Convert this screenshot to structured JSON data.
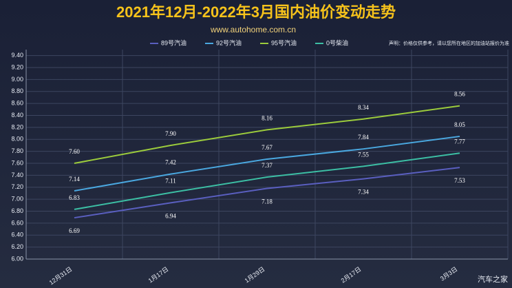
{
  "chart_data": {
    "type": "line",
    "title": "2021年12月-2022年3月国内油价变动走势",
    "subtitle": "www.autohome.com.cn",
    "note": "声明：价格仅供参考，请以您所在地区的加油站报价为准",
    "watermark": "汽车之家",
    "categories": [
      "12月31日",
      "1月17日",
      "1月29日",
      "2月17日",
      "3月3日"
    ],
    "series": [
      {
        "name": "89号汽油",
        "color": "#5a5fc0",
        "values": [
          6.69,
          6.94,
          7.18,
          7.34,
          7.53
        ],
        "value_labels": [
          "6.69",
          "6.94",
          "7.18",
          "7.34",
          "7.53"
        ]
      },
      {
        "name": "92号汽油",
        "color": "#4aa8e0",
        "values": [
          7.14,
          7.42,
          7.67,
          7.84,
          8.05
        ],
        "value_labels": [
          "7.14",
          "7.42",
          "7.67",
          "7.84",
          "8.05"
        ]
      },
      {
        "name": "95号汽油",
        "color": "#9ccc3c",
        "values": [
          7.6,
          7.9,
          8.16,
          8.34,
          8.56
        ],
        "value_labels": [
          "7.60",
          "7.90",
          "8.16",
          "8.34",
          "8.56"
        ]
      },
      {
        "name": "0号柴油",
        "color": "#3cbfa4",
        "values": [
          6.83,
          7.11,
          7.37,
          7.55,
          7.77
        ],
        "value_labels": [
          "6.83",
          "7.11",
          "7.37",
          "7.55",
          "7.77"
        ]
      }
    ],
    "ylim": [
      6.0,
      9.5
    ],
    "yticks": [
      {
        "value": 6.0,
        "label": "6.00"
      },
      {
        "value": 6.2,
        "label": "6.20"
      },
      {
        "value": 6.4,
        "label": "6.40"
      },
      {
        "value": 6.6,
        "label": "6.60"
      },
      {
        "value": 6.8,
        "label": "6.80"
      },
      {
        "value": 7.0,
        "label": "7.00"
      },
      {
        "value": 7.2,
        "label": "7.20"
      },
      {
        "value": 7.4,
        "label": "7.40"
      },
      {
        "value": 7.6,
        "label": "7.60"
      },
      {
        "value": 7.8,
        "label": "7.80"
      },
      {
        "value": 8.0,
        "label": "8.00"
      },
      {
        "value": 8.2,
        "label": "8.20"
      },
      {
        "value": 8.4,
        "label": "8.40"
      },
      {
        "value": 8.6,
        "label": "8.60"
      },
      {
        "value": 8.8,
        "label": "8.80"
      },
      {
        "value": 9.0,
        "label": "9.00"
      },
      {
        "value": 9.2,
        "label": "9.20"
      },
      {
        "value": 9.4,
        "label": "9.40"
      }
    ],
    "grid": true,
    "legend": "top"
  }
}
